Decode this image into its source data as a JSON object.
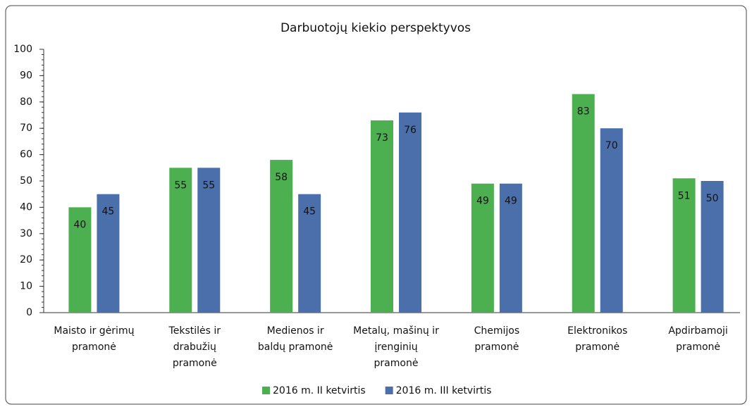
{
  "chart_data": {
    "type": "bar",
    "title": "Darbuotojų kiekio perspektyvos",
    "categories": [
      [
        "Maisto ir gėrimų",
        "pramonė"
      ],
      [
        "Tekstilės ir",
        "drabužių",
        "pramonė"
      ],
      [
        "Medienos ir",
        "baldų pramonė"
      ],
      [
        "Metalų, mašinų ir",
        "įrenginių",
        "pramonė"
      ],
      [
        "Chemijos",
        "pramonė"
      ],
      [
        "Elektronikos",
        "pramonė"
      ],
      [
        "Apdirbamoji",
        "pramonė"
      ]
    ],
    "series": [
      {
        "name": "2016 m. II ketvirtis",
        "color": "#4cb050",
        "values": [
          40,
          55,
          58,
          73,
          49,
          83,
          51
        ]
      },
      {
        "name": "2016 m. III ketvirtis",
        "color": "#4a6fab",
        "values": [
          45,
          55,
          45,
          76,
          49,
          70,
          50
        ]
      }
    ],
    "ylim": [
      0,
      100
    ],
    "yticks": [
      0,
      10,
      20,
      30,
      40,
      50,
      60,
      70,
      80,
      90,
      100
    ],
    "grid": false,
    "legend": "bottom"
  }
}
